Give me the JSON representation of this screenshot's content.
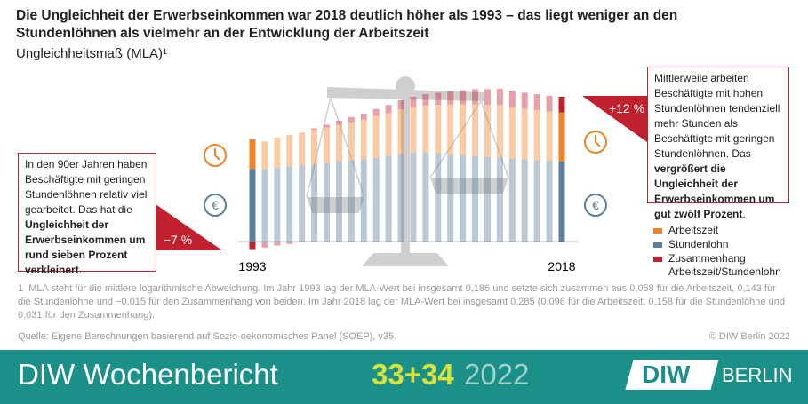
{
  "chart_data": {
    "type": "bar",
    "stacked": true,
    "title": "Die Ungleichheit der Erwerbseinkommen war 2018 deutlich höher als 1993 – das liegt weniger an den Stundenlöhnen als vielmehr an der Entwicklung der Arbeitszeit",
    "subtitle": "Ungleichheitsmaß (MLA)¹",
    "categories": [
      "1993",
      null,
      null,
      null,
      null,
      null,
      null,
      null,
      null,
      null,
      null,
      null,
      null,
      null,
      null,
      null,
      null,
      null,
      null,
      null,
      null,
      null,
      null,
      null,
      null,
      "2018"
    ],
    "series": [
      {
        "name": "Arbeitszeit",
        "color": "#ef8427",
        "values": [
          0.058,
          0.055,
          0.06,
          0.062,
          0.065,
          0.068,
          0.07,
          0.072,
          0.075,
          0.078,
          0.082,
          0.085,
          0.088,
          0.09,
          0.092,
          0.095,
          0.098,
          0.1,
          0.102,
          0.103,
          0.104,
          0.102,
          0.1,
          0.099,
          0.097,
          0.096
        ]
      },
      {
        "name": "Stundenlohn",
        "color": "#5b7f97",
        "values": [
          0.143,
          0.142,
          0.145,
          0.148,
          0.15,
          0.152,
          0.155,
          0.158,
          0.16,
          0.162,
          0.165,
          0.168,
          0.172,
          0.175,
          0.176,
          0.174,
          0.172,
          0.17,
          0.168,
          0.166,
          0.165,
          0.163,
          0.162,
          0.16,
          0.159,
          0.158
        ]
      },
      {
        "name": "Zusammenhang Arbeitszeit/Stundenlohn",
        "color": "#c1202f",
        "values": [
          -0.015,
          -0.012,
          -0.008,
          -0.005,
          0.0,
          0.003,
          0.005,
          0.008,
          0.01,
          0.012,
          0.014,
          0.016,
          0.018,
          0.02,
          0.022,
          0.024,
          0.026,
          0.028,
          0.03,
          0.031,
          0.032,
          0.032,
          0.031,
          0.031,
          0.031,
          0.031
        ]
      }
    ],
    "ylim": [
      -0.03,
      0.32
    ],
    "annotations": [
      {
        "label": "−7 %",
        "text": [
          "In den 90er Jahren haben Beschäftigte mit geringen Stundenlöhnen relativ viel gearbeitet. Das hat die ",
          "Ungleichheit der Erwerbseinkommen um rund sieben Prozent verkleinert",
          "."
        ]
      },
      {
        "label": "+12 %",
        "text": [
          "Mittlerweile arbeiten Beschäftigte mit hohen Stundenlöhnen tendenziell mehr Stunden als Beschäftigte mit geringen Stundenlöhnen. Das ",
          "vergrößert die Ungleichheit der Erwerbseinkommen um gut zwölf Prozent",
          "."
        ]
      }
    ],
    "footnote": {
      "marker": "1",
      "text": "MLA steht für die mittlere logarithmische Abweichung. Im Jahr 1993 lag der MLA-Wert bei insgesamt 0,186 und setzte sich zusammen aus 0,058 für die Arbeitszeit, 0,143 für die Stundenlöhne und −0,015 für den Zusammenhang von beiden. Im Jahr 2018 lag der MLA-Wert bei insgesamt 0,285 (0,096 für die Arbeitszeit, 0,158 für die Stundenlöhne und 0,031 für den Zusammenhang)."
    },
    "source": "Quelle: Eigene Berechnungen basierend auf Sozio-oekonomisches Panel (SOEP), v35.",
    "copyright": "© DIW Berlin 2022"
  },
  "footer": {
    "publication": "DIW Wochenbericht",
    "issue": "33+34",
    "year": "2022",
    "logo": [
      "DIW",
      "BERLIN"
    ]
  }
}
